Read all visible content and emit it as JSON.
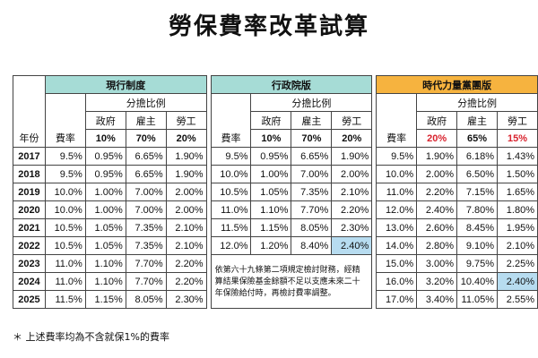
{
  "title": "勞保費率改革試算",
  "plans": [
    {
      "name": "現行制度",
      "color": "#a6dcd6"
    },
    {
      "name": "行政院版",
      "color": "#a6dcd6"
    },
    {
      "name": "時代力量黨團版",
      "color": "#f6b33f"
    }
  ],
  "labels": {
    "share_ratio": "分擔比例",
    "government": "政府",
    "employer": "雇主",
    "labor": "勞工",
    "year": "年份",
    "rate": "費率"
  },
  "ratios": [
    [
      "10%",
      "70%",
      "20%"
    ],
    [
      "10%",
      "70%",
      "20%"
    ],
    [
      "20%",
      "65%",
      "15%"
    ]
  ],
  "rows": [
    {
      "year": "2017",
      "a": [
        "9.5%",
        "0.95%",
        "6.65%",
        "1.90%"
      ],
      "b": [
        "9.5%",
        "0.95%",
        "6.65%",
        "1.90%"
      ],
      "c": [
        "9.5%",
        "1.90%",
        "6.18%",
        "1.43%"
      ]
    },
    {
      "year": "2018",
      "a": [
        "9.5%",
        "0.95%",
        "6.65%",
        "1.90%"
      ],
      "b": [
        "10.0%",
        "1.00%",
        "7.00%",
        "2.00%"
      ],
      "c": [
        "10.0%",
        "2.00%",
        "6.50%",
        "1.50%"
      ]
    },
    {
      "year": "2019",
      "a": [
        "10.0%",
        "1.00%",
        "7.00%",
        "2.00%"
      ],
      "b": [
        "10.5%",
        "1.05%",
        "7.35%",
        "2.10%"
      ],
      "c": [
        "11.0%",
        "2.20%",
        "7.15%",
        "1.65%"
      ]
    },
    {
      "year": "2020",
      "a": [
        "10.0%",
        "1.00%",
        "7.00%",
        "2.00%"
      ],
      "b": [
        "11.0%",
        "1.10%",
        "7.70%",
        "2.20%"
      ],
      "c": [
        "12.0%",
        "2.40%",
        "7.80%",
        "1.80%"
      ]
    },
    {
      "year": "2021",
      "a": [
        "10.5%",
        "1.05%",
        "7.35%",
        "2.10%"
      ],
      "b": [
        "11.5%",
        "1.15%",
        "8.05%",
        "2.30%"
      ],
      "c": [
        "13.0%",
        "2.60%",
        "8.45%",
        "1.95%"
      ]
    },
    {
      "year": "2022",
      "a": [
        "10.5%",
        "1.05%",
        "7.35%",
        "2.10%"
      ],
      "b": [
        "12.0%",
        "1.20%",
        "8.40%",
        "2.40%"
      ],
      "c": [
        "14.0%",
        "2.80%",
        "9.10%",
        "2.10%"
      ]
    },
    {
      "year": "2023",
      "a": [
        "11.0%",
        "1.10%",
        "7.70%",
        "2.20%"
      ],
      "c": [
        "15.0%",
        "3.00%",
        "9.75%",
        "2.25%"
      ]
    },
    {
      "year": "2024",
      "a": [
        "11.0%",
        "1.10%",
        "7.70%",
        "2.20%"
      ],
      "c": [
        "16.0%",
        "3.20%",
        "10.40%",
        "2.40%"
      ]
    },
    {
      "year": "2025",
      "a": [
        "11.5%",
        "1.15%",
        "8.05%",
        "2.30%"
      ],
      "c": [
        "17.0%",
        "3.40%",
        "11.05%",
        "2.55%"
      ]
    }
  ],
  "highlights": [
    {
      "row": 5,
      "plan": "b",
      "col": 3
    },
    {
      "row": 7,
      "plan": "c",
      "col": 3
    }
  ],
  "note": "依第六十九條第二項規定檢討財務，經精算結果保險基金餘額不足以支應未來二十年保險給付時，再檢討費率調整。",
  "footnote": "＊ 上述費率均為不含就保1%的費率",
  "colors": {
    "highlight": "#b7dcf0",
    "red": "#d9232e"
  }
}
